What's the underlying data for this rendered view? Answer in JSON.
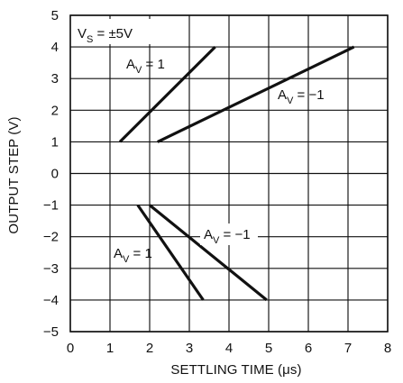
{
  "chart_data": {
    "type": "line",
    "title": "",
    "xlabel": "SETTLING TIME (μs)",
    "ylabel": "OUTPUT STEP (V)",
    "xlim": [
      0,
      8
    ],
    "ylim": [
      -5,
      5
    ],
    "x_ticks": [
      0,
      1,
      2,
      3,
      4,
      5,
      6,
      7,
      8
    ],
    "y_ticks": [
      5,
      4,
      3,
      2,
      1,
      0,
      -1,
      -2,
      -3,
      -4,
      -5
    ],
    "x_tick_labels": [
      "0",
      "1",
      "2",
      "3",
      "4",
      "5",
      "6",
      "7",
      "8"
    ],
    "y_tick_labels": [
      "5",
      "4",
      "3",
      "2",
      "1",
      "0",
      "−1",
      "−2",
      "−3",
      "−4",
      "−5"
    ],
    "grid": true,
    "line_color": "#111111",
    "grid_color": "#111111",
    "series": [
      {
        "label_main": "A",
        "label_sub": "V",
        "label_value": " = 1",
        "x": [
          1.25,
          3.65
        ],
        "y": [
          1,
          4
        ]
      },
      {
        "label_main": "A",
        "label_sub": "V",
        "label_value": " = −1",
        "x": [
          2.2,
          7.15
        ],
        "y": [
          1,
          4
        ]
      },
      {
        "label_main": "A",
        "label_sub": "V",
        "label_value": " = −1",
        "x": [
          2.0,
          4.95
        ],
        "y": [
          -1,
          -4
        ]
      },
      {
        "label_main": "A",
        "label_sub": "V",
        "label_value": " = 1",
        "x": [
          1.7,
          3.35
        ],
        "y": [
          -1,
          -4
        ]
      }
    ],
    "annotations": [
      {
        "main": "V",
        "sub": "S",
        "suffix": " = ±5V"
      }
    ]
  }
}
